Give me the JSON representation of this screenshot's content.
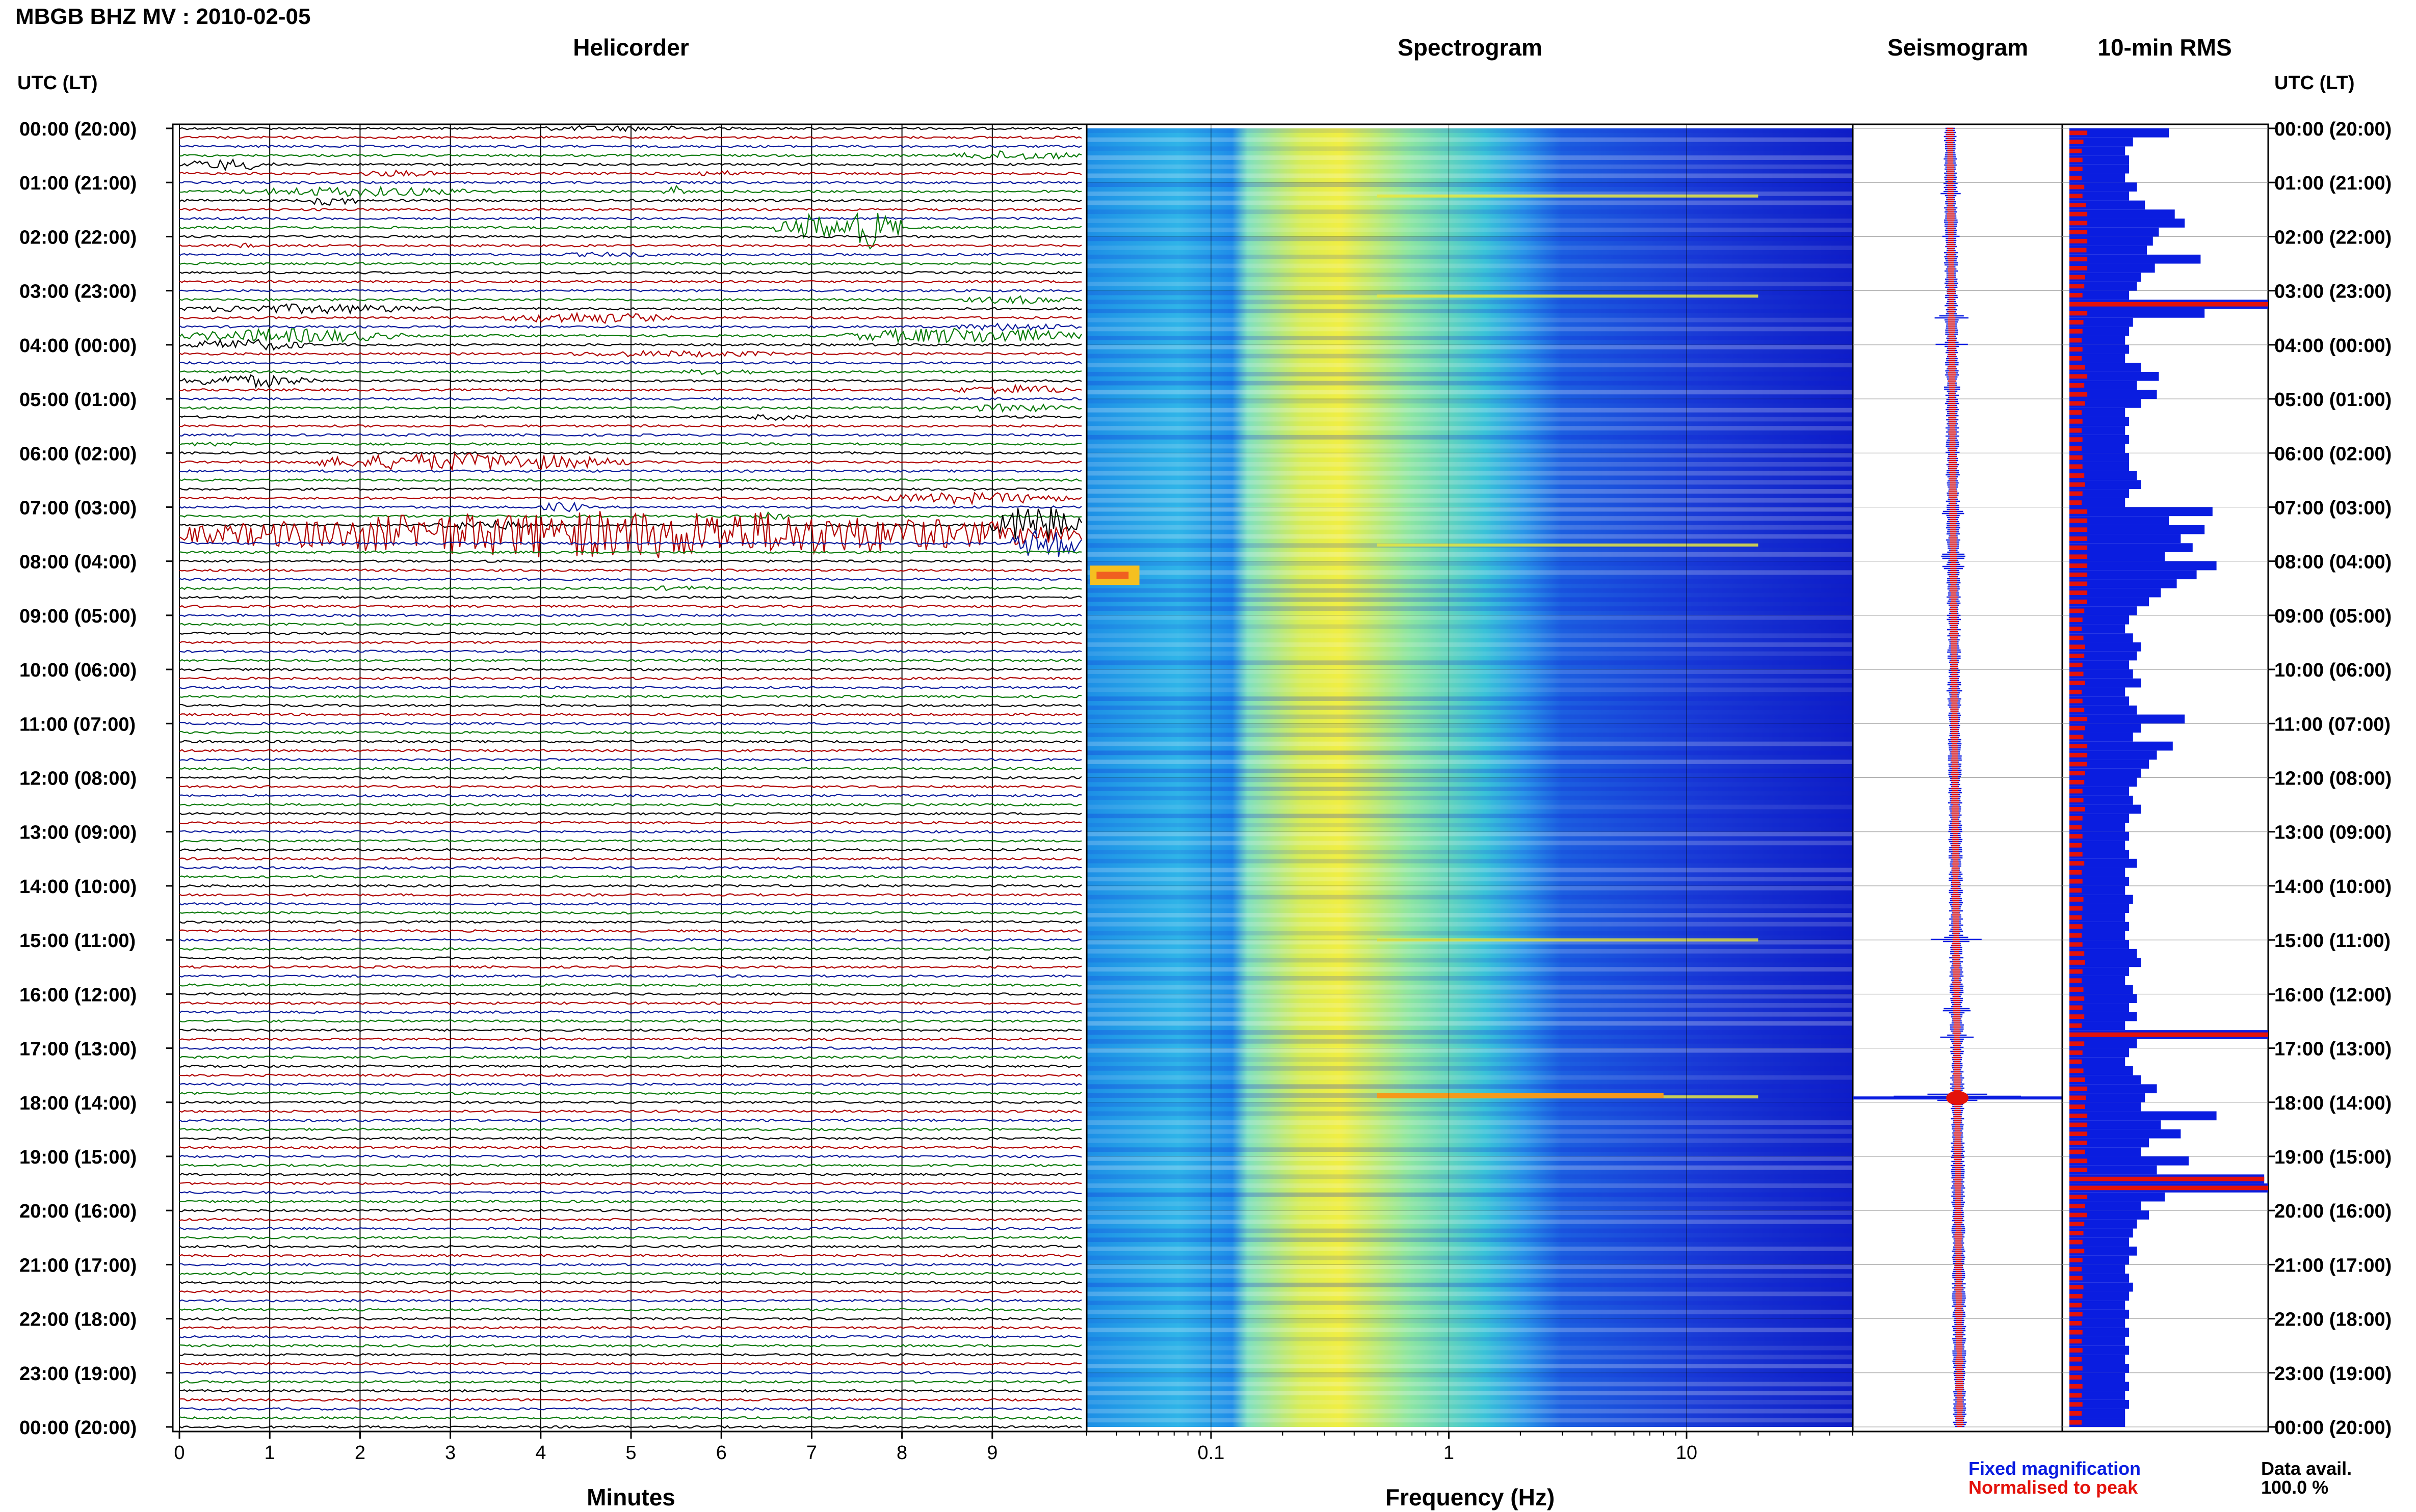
{
  "title": "MBGB BHZ MV : 2010-02-05",
  "axis_head_left": "UTC (LT)",
  "axis_head_right": "UTC (LT)",
  "panels": {
    "helicorder": "Helicorder",
    "spectrogram": "Spectrogram",
    "seismogram": "Seismogram",
    "rms": "10-min RMS"
  },
  "xlabels": {
    "helicorder": "Minutes",
    "spectrogram": "Frequency (Hz)"
  },
  "legend": {
    "fixed": "Fixed magnification",
    "normalised": "Normalised to peak",
    "fixed_color": "#0a1de0",
    "normalised_color": "#e3120b"
  },
  "data_availability": {
    "label": "Data avail.",
    "value": "100.0 %"
  },
  "chart_data": [
    {
      "type": "line",
      "name": "helicorder",
      "x_unit": "minutes",
      "xlim": [
        0,
        10
      ],
      "x_ticks": [
        "0",
        "1",
        "2",
        "3",
        "4",
        "5",
        "6",
        "7",
        "8",
        "9"
      ],
      "time_labels": [
        "00:00 (20:00)",
        "01:00 (21:00)",
        "02:00 (22:00)",
        "03:00 (23:00)",
        "04:00 (00:00)",
        "05:00 (01:00)",
        "06:00 (02:00)",
        "07:00 (03:00)",
        "08:00 (04:00)",
        "09:00 (05:00)",
        "10:00 (06:00)",
        "11:00 (07:00)",
        "12:00 (08:00)",
        "13:00 (09:00)",
        "14:00 (10:00)",
        "15:00 (11:00)",
        "16:00 (12:00)",
        "17:00 (13:00)",
        "18:00 (14:00)",
        "19:00 (15:00)",
        "20:00 (16:00)",
        "21:00 (17:00)",
        "22:00 (18:00)",
        "23:00 (19:00)",
        "00:00 (20:00)"
      ],
      "trace_colors": [
        "#000000",
        "#b00000",
        "#0a1a9c",
        "#0a7a0a"
      ],
      "rows_per_hour": 6,
      "events": [
        {
          "row": 0,
          "start_min": 3.4,
          "end_min": 6.3,
          "amp": 0.35
        },
        {
          "row": 4,
          "start_min": 0.0,
          "end_min": 1.2,
          "amp": 0.7
        },
        {
          "row": 5,
          "start_min": 1.8,
          "end_min": 3.0,
          "amp": 0.4
        },
        {
          "row": 5,
          "start_min": 5.4,
          "end_min": 6.5,
          "amp": 0.35
        },
        {
          "row": 3,
          "start_min": 8.5,
          "end_min": 10.0,
          "amp": 0.6
        },
        {
          "row": 7,
          "start_min": 0.5,
          "end_min": 3.5,
          "amp": 0.6
        },
        {
          "row": 7,
          "start_min": 5.3,
          "end_min": 5.6,
          "amp": 0.8
        },
        {
          "row": 8,
          "start_min": 1.4,
          "end_min": 2.0,
          "amp": 0.7
        },
        {
          "row": 10,
          "start_min": 0.5,
          "end_min": 0.8,
          "amp": 0.4
        },
        {
          "row": 11,
          "start_min": 6.6,
          "end_min": 7.4,
          "amp": 1.6
        },
        {
          "row": 11,
          "start_min": 7.3,
          "end_min": 8.0,
          "amp": 2.6
        },
        {
          "row": 13,
          "start_min": 0.5,
          "end_min": 0.9,
          "amp": 0.3
        },
        {
          "row": 14,
          "start_min": 4.0,
          "end_min": 5.5,
          "amp": 0.3
        },
        {
          "row": 19,
          "start_min": 8.6,
          "end_min": 10.0,
          "amp": 0.5
        },
        {
          "row": 20,
          "start_min": 0.0,
          "end_min": 3.0,
          "amp": 0.6
        },
        {
          "row": 21,
          "start_min": 3.5,
          "end_min": 5.5,
          "amp": 0.7
        },
        {
          "row": 22,
          "start_min": 8.5,
          "end_min": 10.0,
          "amp": 0.5
        },
        {
          "row": 23,
          "start_min": 0.0,
          "end_min": 2.5,
          "amp": 0.9
        },
        {
          "row": 23,
          "start_min": 7.3,
          "end_min": 10.0,
          "amp": 1.0
        },
        {
          "row": 24,
          "start_min": 0.0,
          "end_min": 1.5,
          "amp": 0.7
        },
        {
          "row": 25,
          "start_min": 4.0,
          "end_min": 7.0,
          "amp": 0.4
        },
        {
          "row": 27,
          "start_min": 5.5,
          "end_min": 6.5,
          "amp": 0.4
        },
        {
          "row": 28,
          "start_min": 0.0,
          "end_min": 1.5,
          "amp": 0.8
        },
        {
          "row": 29,
          "start_min": 8.5,
          "end_min": 10.0,
          "amp": 0.6
        },
        {
          "row": 31,
          "start_min": 8.5,
          "end_min": 10.0,
          "amp": 0.5
        },
        {
          "row": 32,
          "start_min": 6.2,
          "end_min": 7.0,
          "amp": 0.4
        },
        {
          "row": 35,
          "start_min": 0.0,
          "end_min": 0.8,
          "amp": 0.3
        },
        {
          "row": 37,
          "start_min": 1.3,
          "end_min": 5.0,
          "amp": 1.1
        },
        {
          "row": 41,
          "start_min": 7.6,
          "end_min": 10.0,
          "amp": 0.7
        },
        {
          "row": 42,
          "start_min": 4.0,
          "end_min": 4.5,
          "amp": 0.7
        },
        {
          "row": 43,
          "start_min": 6.3,
          "end_min": 6.8,
          "amp": 0.7
        },
        {
          "row": 44,
          "start_min": 2.8,
          "end_min": 4.0,
          "amp": 0.6
        },
        {
          "row": 44,
          "start_min": 9.0,
          "end_min": 10.0,
          "amp": 2.5
        },
        {
          "row": 45,
          "start_min": 0.0,
          "end_min": 10.0,
          "amp": 3.0
        },
        {
          "row": 46,
          "start_min": 9.2,
          "end_min": 10.0,
          "amp": 2.0
        },
        {
          "row": 51,
          "start_min": 5.0,
          "end_min": 6.0,
          "amp": 0.3
        }
      ]
    },
    {
      "type": "heatmap",
      "name": "spectrogram",
      "x_scale": "log",
      "xlim": [
        0.03,
        50
      ],
      "x_ticks": [
        "0.1",
        "1",
        "10"
      ],
      "xlabel": "Frequency (Hz)",
      "colormap": [
        "#0a1ad6",
        "#1f6ff0",
        "#22b5e6",
        "#66e0c8",
        "#e8e840",
        "#f59a1a",
        "#e02010"
      ],
      "notable_lines_hour": [
        1.25,
        3.1,
        7.7,
        15.0,
        17.9
      ]
    },
    {
      "type": "line",
      "name": "seismogram",
      "series": [
        {
          "name": "Fixed magnification",
          "color": "#0a1de0"
        },
        {
          "name": "Normalised to peak",
          "color": "#e3120b"
        }
      ],
      "spikes_hour": [
        {
          "t": 1.2,
          "amp": 0.12
        },
        {
          "t": 2.0,
          "amp": 0.15
        },
        {
          "t": 3.5,
          "amp": 0.25
        },
        {
          "t": 4.0,
          "amp": 0.2
        },
        {
          "t": 4.8,
          "amp": 0.12
        },
        {
          "t": 7.1,
          "amp": 0.2
        },
        {
          "t": 7.9,
          "amp": 0.25
        },
        {
          "t": 8.1,
          "amp": 0.18
        },
        {
          "t": 10.4,
          "amp": 0.1
        },
        {
          "t": 14.98,
          "amp": 0.35
        },
        {
          "t": 16.3,
          "amp": 0.2
        },
        {
          "t": 16.8,
          "amp": 0.22
        },
        {
          "t": 17.9,
          "amp": 1.0
        }
      ]
    },
    {
      "type": "bar",
      "name": "10-min RMS",
      "orientation": "horizontal",
      "series": [
        {
          "name": "Fixed magnification",
          "color": "#0a1de0"
        },
        {
          "name": "Normalised to peak",
          "color": "#e3120b"
        }
      ],
      "note": "144 values (one per 10 minutes), relative to panel width",
      "values_relative": [
        0.5,
        0.32,
        0.28,
        0.3,
        0.3,
        0.28,
        0.34,
        0.3,
        0.38,
        0.53,
        0.58,
        0.45,
        0.42,
        0.39,
        0.66,
        0.43,
        0.36,
        0.34,
        0.3,
        1.0,
        0.68,
        0.32,
        0.3,
        0.28,
        0.3,
        0.28,
        0.36,
        0.45,
        0.34,
        0.44,
        0.36,
        0.28,
        0.3,
        0.28,
        0.3,
        0.28,
        0.3,
        0.3,
        0.34,
        0.36,
        0.3,
        0.28,
        0.72,
        0.5,
        0.68,
        0.56,
        0.62,
        0.48,
        0.74,
        0.64,
        0.54,
        0.46,
        0.4,
        0.34,
        0.3,
        0.28,
        0.32,
        0.36,
        0.34,
        0.3,
        0.32,
        0.36,
        0.28,
        0.3,
        0.34,
        0.58,
        0.36,
        0.32,
        0.52,
        0.44,
        0.4,
        0.36,
        0.34,
        0.3,
        0.32,
        0.36,
        0.3,
        0.28,
        0.3,
        0.28,
        0.3,
        0.34,
        0.28,
        0.3,
        0.28,
        0.32,
        0.3,
        0.28,
        0.3,
        0.28,
        0.3,
        0.34,
        0.36,
        0.3,
        0.28,
        0.32,
        0.34,
        0.3,
        0.34,
        0.28,
        1.0,
        0.34,
        0.3,
        0.28,
        0.32,
        0.36,
        0.44,
        0.38,
        0.36,
        0.74,
        0.46,
        0.56,
        0.4,
        0.36,
        0.6,
        0.44,
        0.98,
        1.0,
        0.48,
        0.36,
        0.4,
        0.34,
        0.32,
        0.3,
        0.34,
        0.3,
        0.28,
        0.3,
        0.32,
        0.3,
        0.28,
        0.3,
        0.28,
        0.3,
        0.28,
        0.3,
        0.28,
        0.3,
        0.28,
        0.3,
        0.28,
        0.3,
        0.28,
        0.28
      ]
    }
  ]
}
